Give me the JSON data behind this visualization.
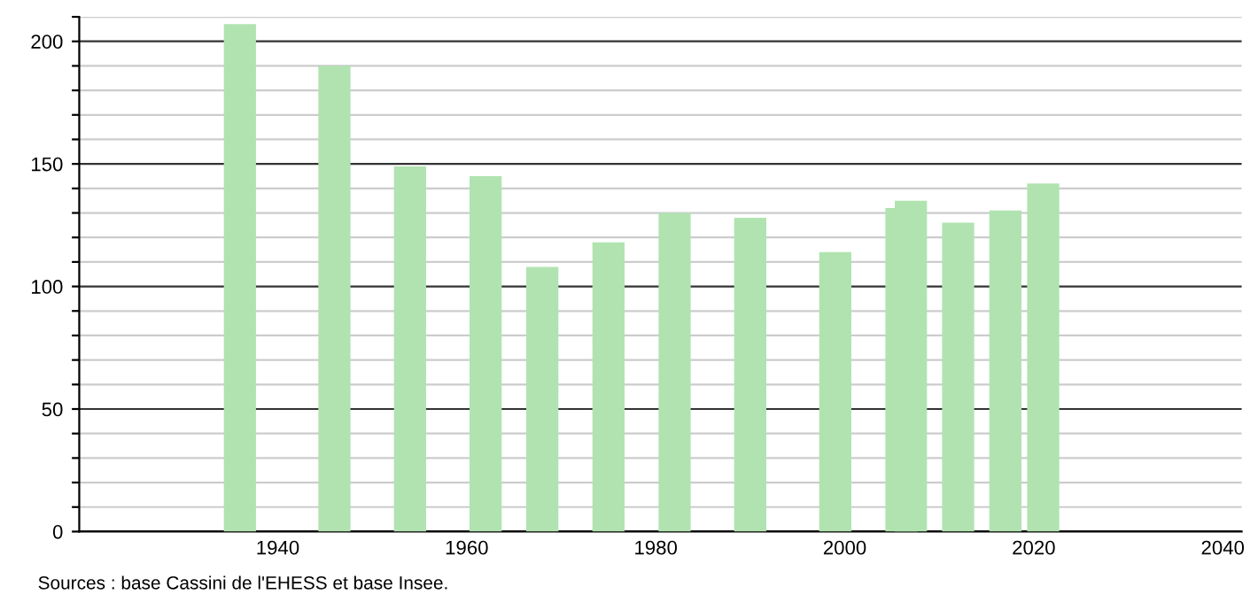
{
  "chart_data": {
    "type": "bar",
    "x": [
      1936,
      1946,
      1954,
      1962,
      1968,
      1975,
      1982,
      1990,
      1999,
      2006,
      2007,
      2012,
      2017,
      2021
    ],
    "values": [
      207,
      190,
      149,
      145,
      108,
      118,
      130,
      128,
      114,
      132,
      135,
      126,
      131,
      142
    ],
    "color": "#b0e3b0",
    "xlim": [
      1919,
      2042
    ],
    "xticks": [
      1940,
      1960,
      1980,
      2000,
      2020,
      2040
    ],
    "ylim": [
      0,
      210
    ],
    "yticks": [
      0,
      {
        "value": 10,
        "label": null
      },
      {
        "value": 20,
        "label": null
      },
      {
        "value": 30,
        "label": null
      },
      {
        "value": 40,
        "label": null
      },
      50,
      {
        "value": 60,
        "label": null
      },
      {
        "value": 70,
        "label": null
      },
      {
        "value": 80,
        "label": null
      },
      {
        "value": 90,
        "label": null
      },
      100,
      {
        "value": 110,
        "label": null
      },
      {
        "value": 120,
        "label": null
      },
      {
        "value": 130,
        "label": null
      },
      {
        "value": 140,
        "label": null
      },
      150,
      {
        "value": 160,
        "label": null
      },
      {
        "value": 170,
        "label": null
      },
      {
        "value": 180,
        "label": null
      },
      {
        "value": 190,
        "label": null
      },
      200,
      {
        "value": 210,
        "label": null
      }
    ],
    "grid": "y",
    "annotations": [
      "Sources : base Cassini de l'EHESS et base Insee."
    ]
  }
}
